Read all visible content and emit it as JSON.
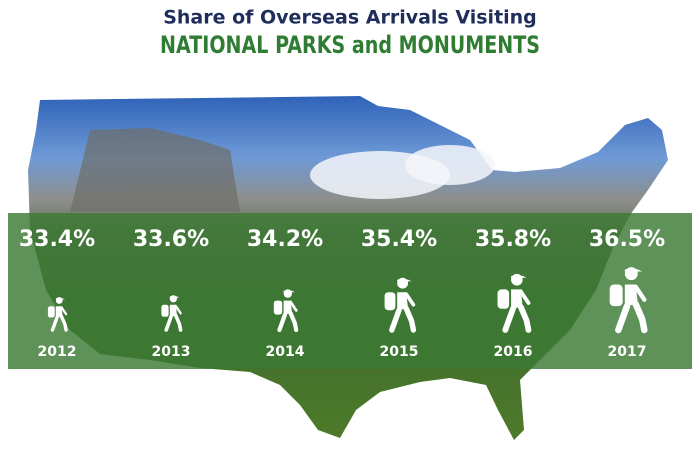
{
  "chart_data": {
    "type": "pictogram",
    "title": "Share of Overseas Arrivals Visiting",
    "subtitle": "NATIONAL PARKS and MONUMENTS",
    "categories": [
      "2012",
      "2013",
      "2014",
      "2015",
      "2016",
      "2017"
    ],
    "values": [
      33.4,
      33.6,
      34.2,
      35.4,
      35.8,
      36.5
    ],
    "value_labels": [
      "33.4%",
      "33.6%",
      "34.2%",
      "35.4%",
      "35.8%",
      "36.5%"
    ],
    "color": "#ffffff"
  }
}
